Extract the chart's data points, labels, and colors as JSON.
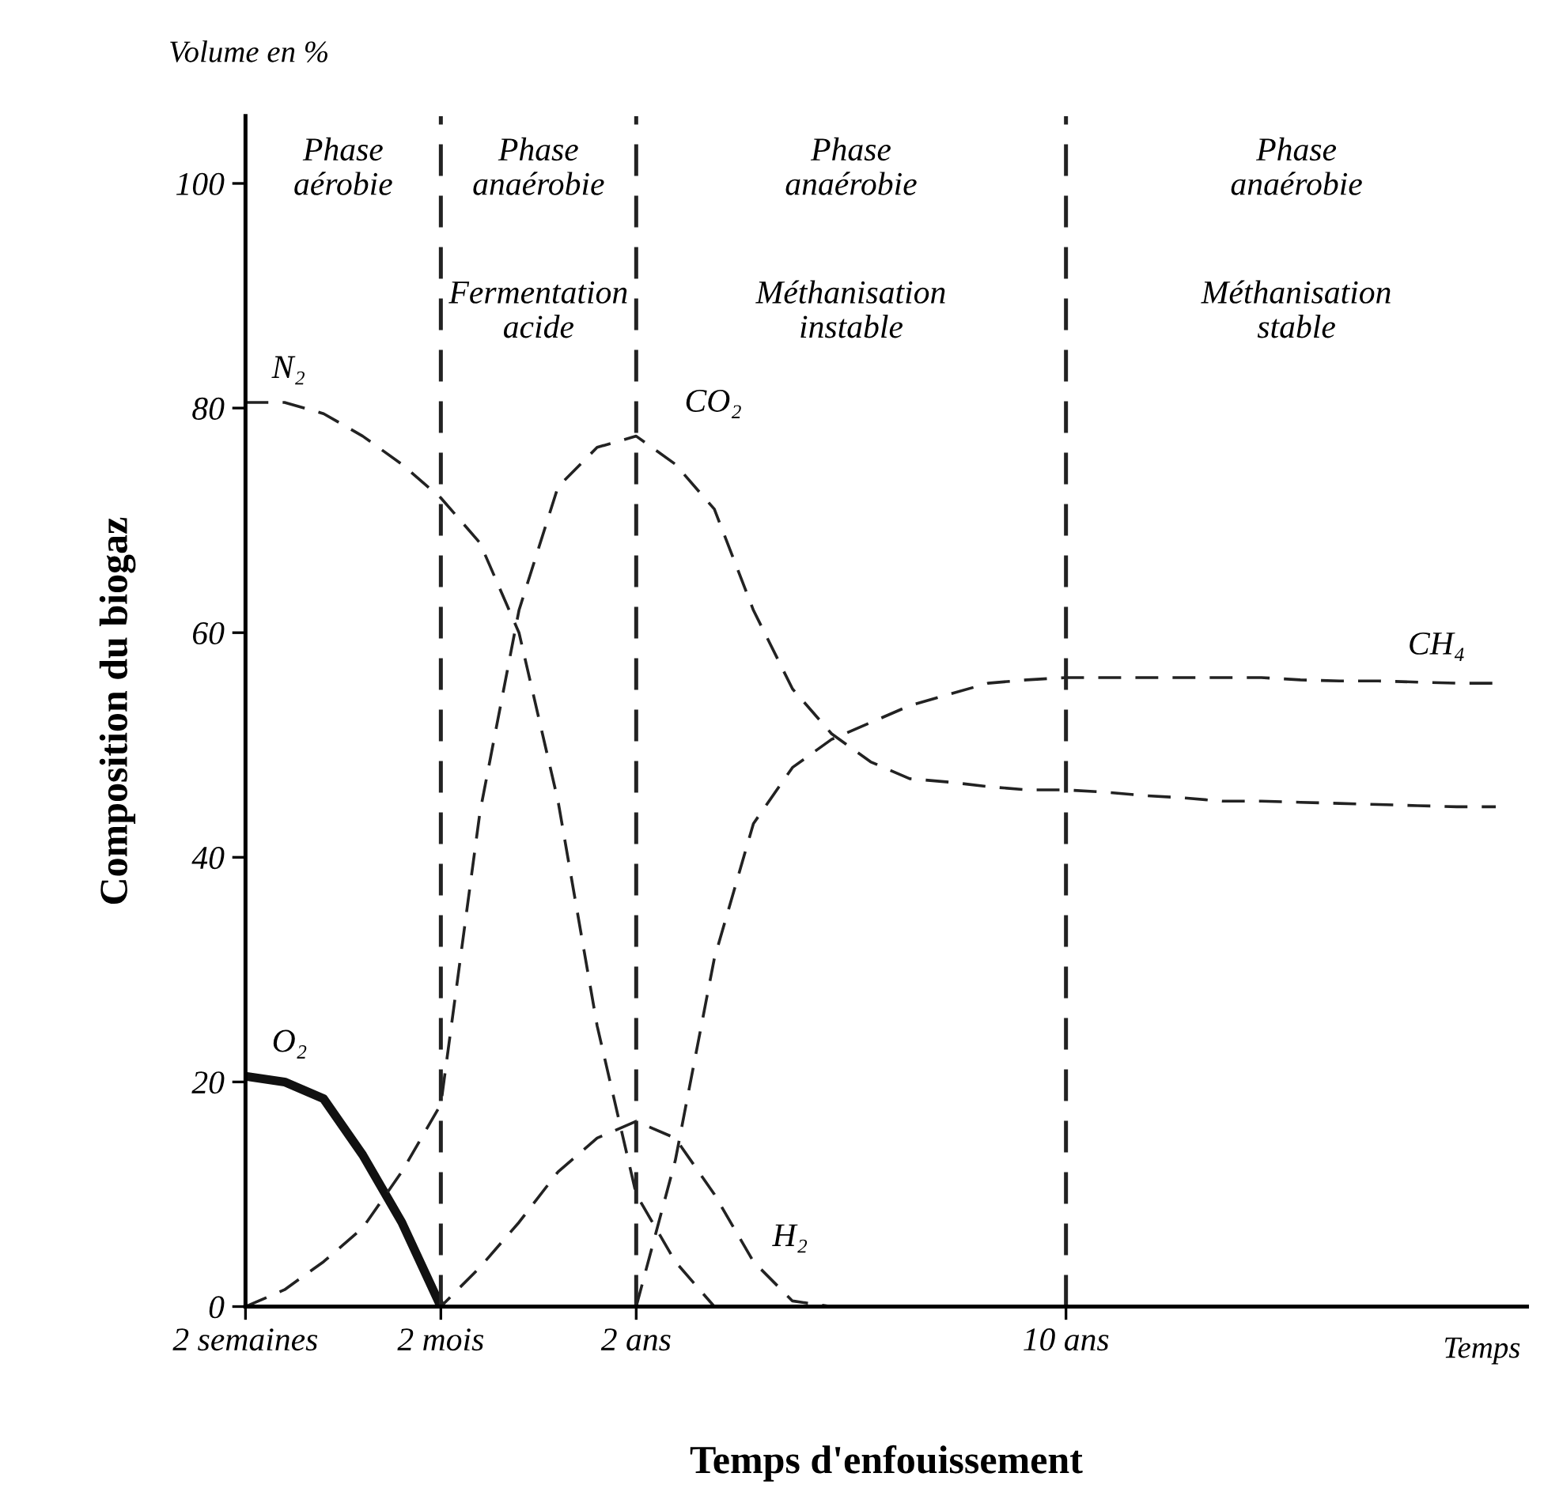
{
  "chart_data": {
    "type": "line",
    "xlabel": "Temps d'enfouissement",
    "ylabel": "Composition du biogaz",
    "categories": [
      "2 semaines",
      null,
      null,
      null,
      null,
      "2 mois",
      null,
      null,
      null,
      null,
      "2 ans",
      null,
      null,
      null,
      null,
      null,
      null,
      null,
      null,
      null,
      null,
      "10 ans",
      null,
      null,
      null,
      null,
      null,
      null,
      null,
      null,
      null,
      null,
      null
    ],
    "ylim": [
      0,
      106
    ],
    "yticks": [
      0,
      20,
      40,
      60,
      80,
      100
    ],
    "grid": false,
    "legend": false,
    "marker": "none",
    "ref_lines": [
      {
        "axis": "x",
        "value": "2 mois",
        "line_style": "dashed"
      },
      {
        "axis": "x",
        "value": "2 ans",
        "line_style": "dashed"
      },
      {
        "axis": "x",
        "value": "10 ans",
        "line_style": "dashed"
      }
    ],
    "annotations": [
      "Volume en %",
      "Temps",
      "Phase\naérobie",
      "Phase\nanaérobie",
      "Fermentation\nacide",
      "Phase\nanaérobie",
      "Méthanisation\ninstable",
      "Phase\nanaérobie",
      "Méthanisation\nstable"
    ],
    "series": [
      {
        "name": "O₂",
        "color": "#111111",
        "line_style": "solid",
        "values": [
          20.5,
          20,
          18.5,
          13.5,
          7.5,
          0,
          null,
          null,
          null,
          null,
          null,
          null,
          null,
          null,
          null,
          null,
          null,
          null,
          null,
          null,
          null,
          null,
          null,
          null,
          null,
          null,
          null,
          null,
          null,
          null,
          null,
          null,
          null
        ]
      },
      {
        "name": "N₂",
        "color": "#222222",
        "line_style": "dashed",
        "values": [
          80.5,
          80.5,
          79.5,
          77.5,
          75,
          72,
          68,
          60,
          45,
          25,
          10,
          4,
          0,
          null,
          null,
          null,
          null,
          null,
          null,
          null,
          null,
          null,
          null,
          null,
          null,
          null,
          null,
          null,
          null,
          null,
          null,
          null,
          null
        ]
      },
      {
        "name": "CO₂",
        "color": "#222222",
        "line_style": "dashed",
        "values": [
          0,
          1.5,
          4,
          7,
          12,
          18,
          44,
          62,
          73,
          76.5,
          77.5,
          75,
          71,
          62,
          55,
          51,
          48.5,
          47,
          46.7,
          46.3,
          46,
          46,
          45.8,
          45.5,
          45.3,
          45,
          45,
          44.9,
          44.8,
          44.7,
          44.6,
          44.5,
          44.5
        ]
      },
      {
        "name": "H₂",
        "color": "#222222",
        "line_style": "dashed",
        "values": [
          0,
          0,
          0,
          0,
          0,
          0,
          3.5,
          7.5,
          12,
          15,
          16.5,
          15,
          10,
          4,
          0.5,
          0,
          null,
          null,
          null,
          null,
          null,
          null,
          null,
          null,
          null,
          null,
          null,
          null,
          null,
          null,
          null,
          null,
          null
        ]
      },
      {
        "name": "CH₄",
        "color": "#222222",
        "line_style": "dashed",
        "values": [
          null,
          null,
          null,
          null,
          null,
          null,
          null,
          null,
          null,
          null,
          0,
          13,
          31,
          43,
          48,
          50.5,
          52,
          53.5,
          54.5,
          55.5,
          55.8,
          56,
          56,
          56,
          56,
          56,
          56,
          55.8,
          55.7,
          55.7,
          55.6,
          55.5,
          55.5
        ]
      }
    ]
  }
}
